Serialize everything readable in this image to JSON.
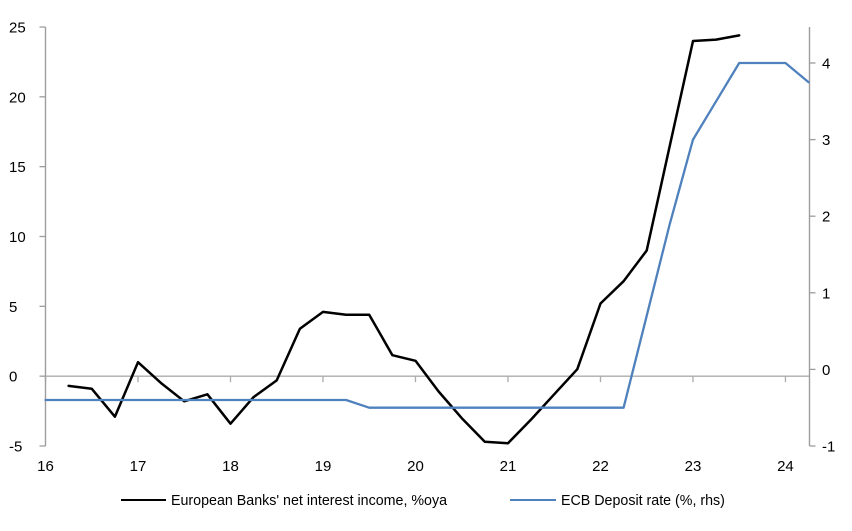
{
  "chart_data": {
    "type": "line",
    "title": "",
    "x_domain": [
      16,
      24.26
    ],
    "x_ticks": [
      16,
      17,
      18,
      19,
      20,
      21,
      22,
      23,
      24
    ],
    "left_axis": {
      "range": [
        -5,
        25
      ],
      "ticks": [
        -5,
        0,
        5,
        10,
        15,
        20,
        25
      ]
    },
    "right_axis": {
      "range": [
        -1,
        4.47
      ],
      "ticks": [
        -1,
        0,
        1,
        2,
        3,
        4
      ]
    },
    "grid": "zero-line-only",
    "legend_position": "bottom",
    "colors": {
      "axis": "#9D9D9D",
      "zero_line": "#ACACAC",
      "nii_line": "#000000",
      "ecb_line": "#4F81BD"
    },
    "series": [
      {
        "id": "nii",
        "name": "European Banks' net interest income, %oya",
        "axis": "left",
        "color": "#000000",
        "x": [
          16.25,
          16.5,
          16.75,
          17,
          17.25,
          17.5,
          17.75,
          18,
          18.25,
          18.5,
          18.75,
          19,
          19.25,
          19.5,
          19.75,
          20,
          20.25,
          20.5,
          20.75,
          21,
          21.25,
          21.5,
          21.75,
          22,
          22.25,
          22.5,
          22.75,
          23,
          23.25,
          23.5
        ],
        "values": [
          -0.7,
          -0.9,
          -2.9,
          1.0,
          -0.5,
          -1.8,
          -1.3,
          -3.4,
          -1.5,
          -0.3,
          3.4,
          4.6,
          4.4,
          4.4,
          1.5,
          1.1,
          -1.1,
          -3.0,
          -4.7,
          -4.8,
          -3.1,
          -1.3,
          0.5,
          5.2,
          6.8,
          9.0,
          16.5,
          24.0,
          24.1,
          24.4
        ]
      },
      {
        "id": "ecb",
        "name": "ECB Deposit rate (%, rhs)",
        "axis": "right",
        "color": "#4F81BD",
        "x": [
          16,
          16.25,
          16.5,
          16.75,
          17,
          17.25,
          17.5,
          17.75,
          18,
          18.25,
          18.5,
          18.75,
          19,
          19.25,
          19.5,
          19.75,
          20,
          20.25,
          20.5,
          20.75,
          21,
          21.25,
          21.5,
          21.75,
          22,
          22.25,
          22.5,
          22.75,
          23,
          23.25,
          23.5,
          23.75,
          24,
          24.25
        ],
        "values": [
          -0.4,
          -0.4,
          -0.4,
          -0.4,
          -0.4,
          -0.4,
          -0.4,
          -0.4,
          -0.4,
          -0.4,
          -0.4,
          -0.4,
          -0.4,
          -0.4,
          -0.5,
          -0.5,
          -0.5,
          -0.5,
          -0.5,
          -0.5,
          -0.5,
          -0.5,
          -0.5,
          -0.5,
          -0.5,
          -0.5,
          0.7,
          1.9,
          3.0,
          3.5,
          4.0,
          4.0,
          4.0,
          3.75
        ]
      }
    ]
  }
}
